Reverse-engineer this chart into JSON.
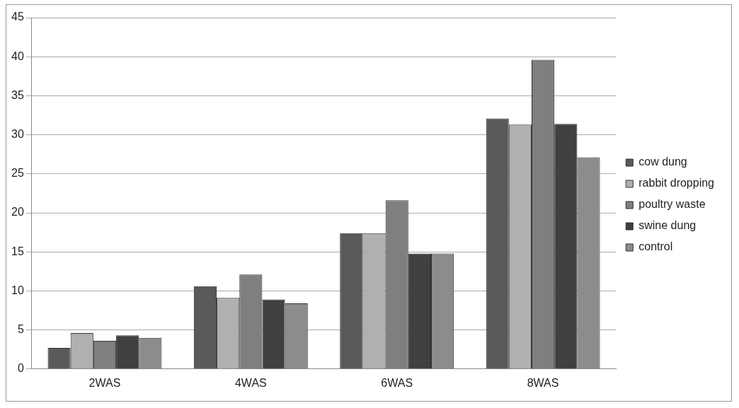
{
  "chart_data": {
    "type": "bar",
    "categories": [
      "2WAS",
      "4WAS",
      "6WAS",
      "8WAS"
    ],
    "series": [
      {
        "name": "cow dung",
        "color": "#5a5a5a",
        "values": [
          2.7,
          10.6,
          17.4,
          32.1
        ]
      },
      {
        "name": "rabbit dropping",
        "color": "#b0b0b0",
        "values": [
          4.6,
          9.1,
          17.4,
          31.3
        ]
      },
      {
        "name": "poultry waste",
        "color": "#7f7f7f",
        "values": [
          3.6,
          12.1,
          21.6,
          39.6
        ]
      },
      {
        "name": "swine dung",
        "color": "#404040",
        "values": [
          4.3,
          8.9,
          14.8,
          31.4
        ]
      },
      {
        "name": "control",
        "color": "#8c8c8c",
        "values": [
          4.0,
          8.4,
          14.8,
          27.1
        ]
      }
    ],
    "ylim": [
      0,
      45
    ],
    "yticks": [
      0,
      5,
      10,
      15,
      20,
      25,
      30,
      35,
      40,
      45
    ],
    "grid": "y",
    "legend": "right"
  }
}
